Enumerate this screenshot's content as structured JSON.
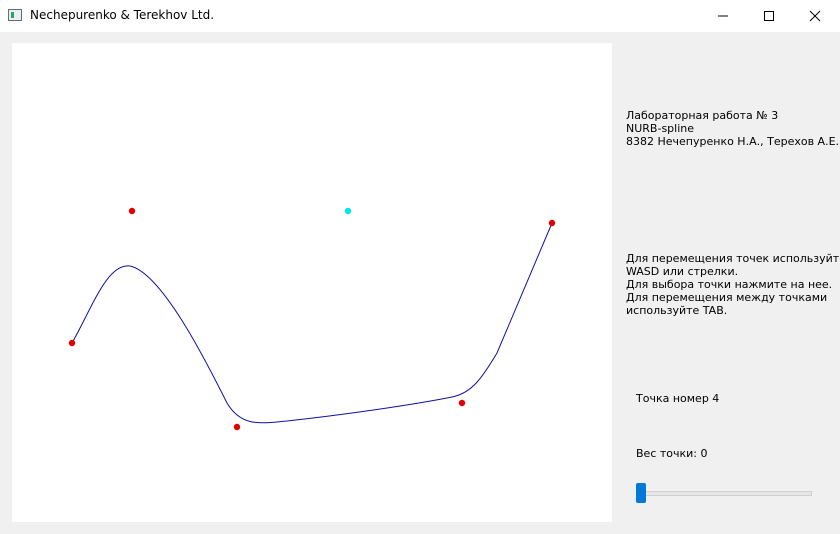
{
  "window": {
    "title": "Nechepurenko & Terekhov Ltd.",
    "icon": "app-window-icon",
    "controls": [
      "minimize-icon",
      "maximize-icon",
      "close-icon"
    ]
  },
  "info_panel": {
    "lab_lines": [
      "Лабораторная работа № 3",
      "NURB-spline",
      "8382 Нечепуренко Н.А., Терехов А.Е."
    ],
    "help_lines": [
      "Для перемещения точек используйте",
      "WASD или стрелки.",
      "Для выбора точки нажмите на нее.",
      "Для перемещения между точками",
      "используйте TAB."
    ],
    "point_number_label": "Точка номер 4",
    "point_weight_label": "Вес точки: 0",
    "weight_slider": {
      "value": 0,
      "min": 0,
      "max": 1
    }
  },
  "colors": {
    "control_point": "#e00000",
    "selected_point": "#00e5ee",
    "curve": "#1010a0",
    "slider_thumb": "#0078d7"
  }
}
